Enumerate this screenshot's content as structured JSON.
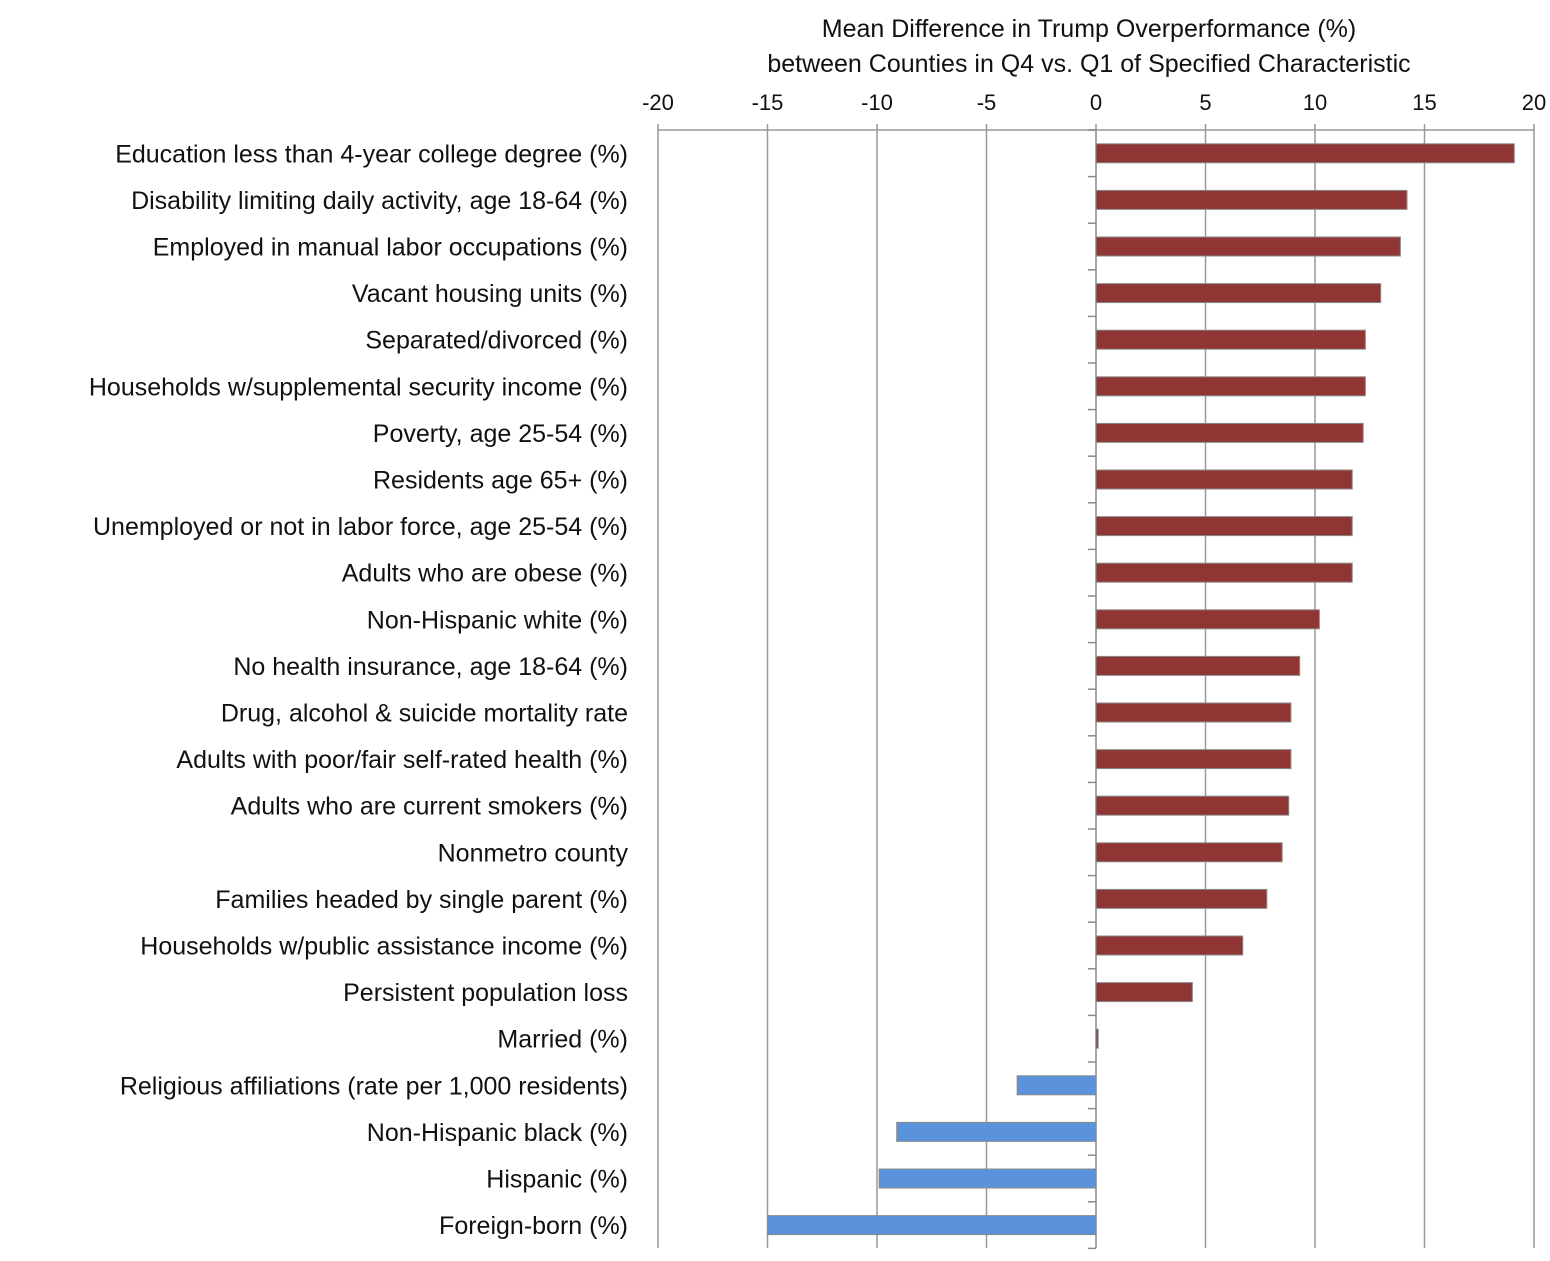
{
  "chart_data": {
    "type": "bar",
    "orientation": "horizontal",
    "title_lines": [
      "Mean Difference in Trump Overperformance (%)",
      "between Counties in Q4 vs. Q1 of Specified Characteristic"
    ],
    "xlim": [
      -20,
      20
    ],
    "xticks": [
      -20,
      -15,
      -10,
      -5,
      0,
      5,
      10,
      15,
      20
    ],
    "axis_position": "top",
    "grid": true,
    "colors": {
      "positive": "#8f3634",
      "negative": "#5b92dc"
    },
    "categories": [
      "Education less than 4-year college degree (%)",
      "Disability limiting daily activity, age 18-64 (%)",
      "Employed in manual labor occupations (%)",
      "Vacant housing units (%)",
      "Separated/divorced (%)",
      "Households w/supplemental security income (%)",
      "Poverty, age 25-54 (%)",
      "Residents age 65+ (%)",
      "Unemployed or not in labor force, age 25-54 (%)",
      "Adults who are obese (%)",
      "Non-Hispanic white (%)",
      "No health insurance, age 18-64 (%)",
      "Drug, alcohol & suicide mortality rate",
      "Adults with poor/fair self-rated health (%)",
      "Adults who are current smokers (%)",
      "Nonmetro county",
      "Families headed by single parent (%)",
      "Households w/public assistance income (%)",
      "Persistent population loss",
      "Married (%)",
      "Religious affiliations (rate per 1,000 residents)",
      "Non-Hispanic black (%)",
      "Hispanic (%)",
      "Foreign-born (%)"
    ],
    "values": [
      19.1,
      14.2,
      13.9,
      13.0,
      12.3,
      12.3,
      12.2,
      11.7,
      11.7,
      11.7,
      10.2,
      9.3,
      8.9,
      8.9,
      8.8,
      8.5,
      7.8,
      6.7,
      4.4,
      0.1,
      -3.6,
      -9.1,
      -9.9,
      -15.0
    ]
  }
}
